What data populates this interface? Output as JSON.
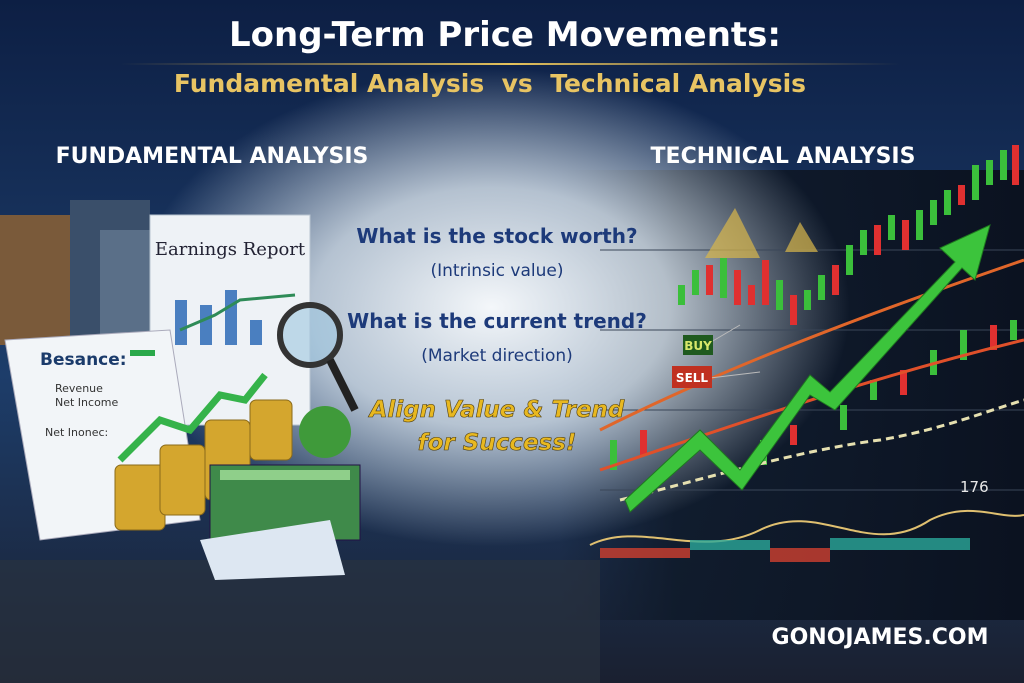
{
  "header": {
    "title": "Long-Term Price Movements:",
    "subtitle": "Fundamental Analysis  vs  Technical Analysis"
  },
  "left": {
    "heading": "FUNDAMENTAL ANALYSIS",
    "report_title": "Earnings Report",
    "sheet_title": "Besance:",
    "sheet_rows": [
      "Revenue",
      "Net Income",
      "Net Inonec:"
    ]
  },
  "right": {
    "heading": "TECHNICAL ANALYSIS",
    "buy": "BUY",
    "sell": "SELL",
    "indicator": "176"
  },
  "center": {
    "q1": "What is the stock worth?",
    "a1": "(Intrinsic value)",
    "q2": "What is the current trend?",
    "a2": "(Market direction)",
    "tagline": [
      "Align Value & Trend",
      "for Success!"
    ]
  },
  "footer": {
    "site": "GONOJAMES.COM"
  }
}
